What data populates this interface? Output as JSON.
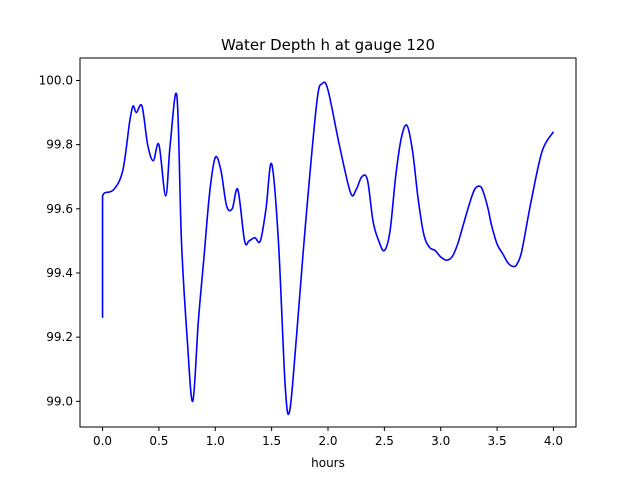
{
  "chart_data": {
    "type": "line",
    "title": "Water Depth h at gauge 120",
    "xlabel": "hours",
    "ylabel": "",
    "xlim": [
      -0.2,
      4.2
    ],
    "ylim": [
      98.92,
      100.07
    ],
    "grid": false,
    "x_ticks": [
      0.0,
      0.5,
      1.0,
      1.5,
      2.0,
      2.5,
      3.0,
      3.5,
      4.0
    ],
    "x_tick_labels": [
      "0.0",
      "0.5",
      "1.0",
      "1.5",
      "2.0",
      "2.5",
      "3.0",
      "3.5",
      "4.0"
    ],
    "y_ticks": [
      99.0,
      99.2,
      99.4,
      99.6,
      99.8,
      100.0
    ],
    "y_tick_labels": [
      "99.0",
      "99.2",
      "99.4",
      "99.6",
      "99.8",
      "100.0"
    ],
    "series": [
      {
        "color": "#0000ff",
        "x": [
          0.0,
          0.0,
          0.02,
          0.1,
          0.18,
          0.24,
          0.27,
          0.3,
          0.35,
          0.4,
          0.45,
          0.5,
          0.56,
          0.6,
          0.66,
          0.7,
          0.75,
          0.8,
          0.85,
          0.9,
          0.95,
          1.0,
          1.05,
          1.1,
          1.15,
          1.2,
          1.26,
          1.3,
          1.35,
          1.4,
          1.45,
          1.5,
          1.56,
          1.62,
          1.66,
          1.72,
          1.8,
          1.9,
          1.95,
          2.0,
          2.1,
          2.2,
          2.25,
          2.3,
          2.35,
          2.4,
          2.45,
          2.5,
          2.55,
          2.6,
          2.65,
          2.7,
          2.75,
          2.8,
          2.85,
          2.9,
          2.95,
          3.0,
          3.05,
          3.1,
          3.15,
          3.2,
          3.25,
          3.3,
          3.35,
          3.38,
          3.42,
          3.45,
          3.5,
          3.55,
          3.6,
          3.65,
          3.68,
          3.72,
          3.8,
          3.9,
          4.0
        ],
        "values": [
          99.26,
          99.64,
          99.65,
          99.66,
          99.72,
          99.87,
          99.92,
          99.9,
          99.92,
          99.8,
          99.75,
          99.8,
          99.64,
          99.8,
          99.95,
          99.5,
          99.2,
          99.0,
          99.25,
          99.45,
          99.65,
          99.76,
          99.72,
          99.61,
          99.6,
          99.66,
          99.5,
          99.5,
          99.51,
          99.5,
          99.6,
          99.74,
          99.5,
          99.05,
          98.97,
          99.2,
          99.55,
          99.93,
          99.99,
          99.97,
          99.8,
          99.65,
          99.66,
          99.7,
          99.69,
          99.56,
          99.5,
          99.47,
          99.53,
          99.7,
          99.82,
          99.86,
          99.78,
          99.63,
          99.52,
          99.48,
          99.47,
          99.45,
          99.44,
          99.45,
          99.49,
          99.55,
          99.61,
          99.66,
          99.67,
          99.65,
          99.6,
          99.55,
          99.49,
          99.46,
          99.43,
          99.42,
          99.43,
          99.47,
          99.62,
          99.78,
          99.84
        ]
      }
    ]
  }
}
